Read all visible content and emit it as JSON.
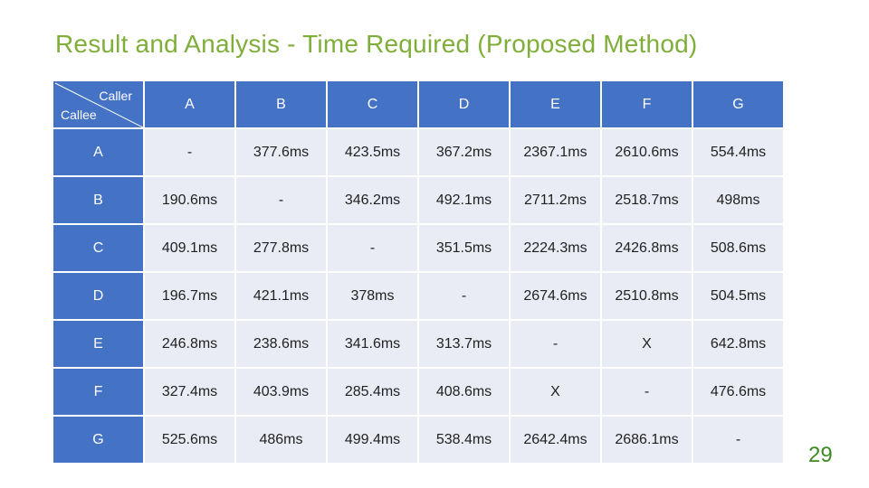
{
  "title": "Result and Analysis - Time Required (Proposed Method)",
  "page_number": "29",
  "table": {
    "corner_caller": "Caller",
    "corner_callee": "Callee",
    "columns": [
      "A",
      "B",
      "C",
      "D",
      "E",
      "F",
      "G"
    ],
    "rows": [
      {
        "label": "A",
        "cells": [
          "-",
          "377.6ms",
          "423.5ms",
          "367.2ms",
          "2367.1ms",
          "2610.6ms",
          "554.4ms"
        ]
      },
      {
        "label": "B",
        "cells": [
          "190.6ms",
          "-",
          "346.2ms",
          "492.1ms",
          "2711.2ms",
          "2518.7ms",
          "498ms"
        ]
      },
      {
        "label": "C",
        "cells": [
          "409.1ms",
          "277.8ms",
          "-",
          "351.5ms",
          "2224.3ms",
          "2426.8ms",
          "508.6ms"
        ]
      },
      {
        "label": "D",
        "cells": [
          "196.7ms",
          "421.1ms",
          "378ms",
          "-",
          "2674.6ms",
          "2510.8ms",
          "504.5ms"
        ]
      },
      {
        "label": "E",
        "cells": [
          "246.8ms",
          "238.6ms",
          "341.6ms",
          "313.7ms",
          "-",
          "X",
          "642.8ms"
        ]
      },
      {
        "label": "F",
        "cells": [
          "327.4ms",
          "403.9ms",
          "285.4ms",
          "408.6ms",
          "X",
          "-",
          "476.6ms"
        ]
      },
      {
        "label": "G",
        "cells": [
          "525.6ms",
          "486ms",
          "499.4ms",
          "538.4ms",
          "2642.4ms",
          "2686.1ms",
          "-"
        ]
      }
    ]
  }
}
